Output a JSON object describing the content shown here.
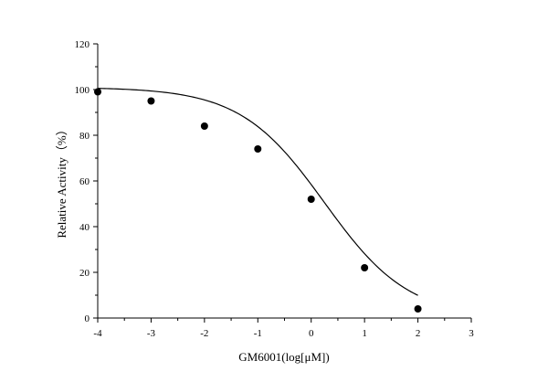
{
  "chart_data": {
    "type": "scatter",
    "title": "",
    "xlabel": "GM6001(log[μM])",
    "ylabel": "Relative Activity（%）",
    "xlim": [
      -4,
      3
    ],
    "ylim": [
      0,
      120
    ],
    "xticks": [
      -4,
      -3,
      -2,
      -1,
      0,
      1,
      2,
      3
    ],
    "yticks": [
      0,
      20,
      40,
      60,
      80,
      100,
      120
    ],
    "grid": false,
    "legend": "none",
    "series": [
      {
        "x": [
          -4,
          -3,
          -2,
          -1,
          0,
          1,
          2
        ],
        "y": [
          99,
          95,
          84,
          74,
          52,
          22,
          4
        ]
      }
    ],
    "fit_curve": {
      "type": "four-parameter logistic",
      "bottom": 0,
      "top": 101,
      "log_ic50": 0.25,
      "hill_slope": 0.55
    },
    "colors": {
      "points": "#000000",
      "curve": "#000000",
      "axes": "#000000"
    }
  }
}
